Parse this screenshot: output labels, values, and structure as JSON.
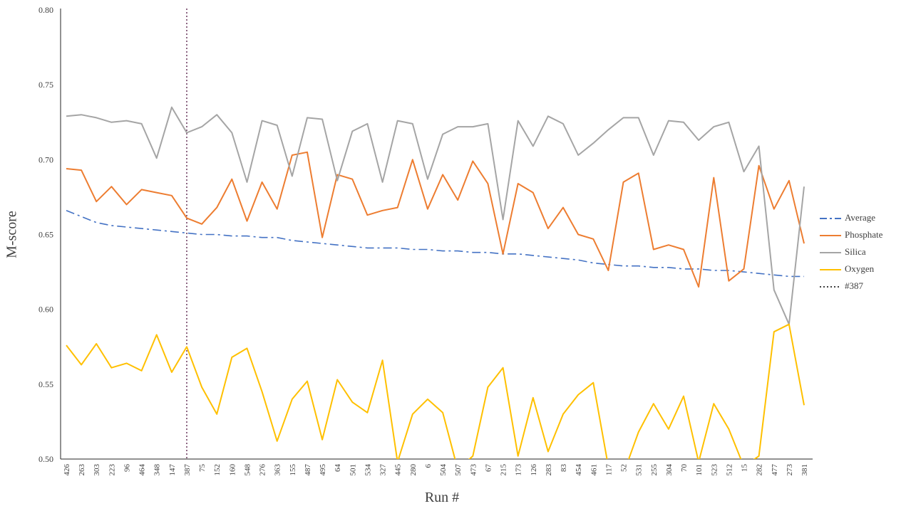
{
  "chart_data": {
    "type": "line",
    "title": "",
    "xlabel": "Run #",
    "ylabel": "M-score",
    "ylim": [
      0.5,
      0.8
    ],
    "ytick_step": 0.05,
    "grid": false,
    "legend_position": "right",
    "categories": [
      "426",
      "263",
      "303",
      "223",
      "96",
      "464",
      "348",
      "147",
      "387",
      "75",
      "152",
      "160",
      "548",
      "276",
      "363",
      "155",
      "487",
      "495",
      "64",
      "501",
      "534",
      "327",
      "445",
      "280",
      "6",
      "504",
      "507",
      "473",
      "67",
      "215",
      "173",
      "126",
      "283",
      "83",
      "454",
      "461",
      "117",
      "52",
      "531",
      "255",
      "304",
      "70",
      "101",
      "523",
      "512",
      "15",
      "282",
      "477",
      "273",
      "381"
    ],
    "series": [
      {
        "name": "Average",
        "color": "#4472C4",
        "style": "dash-dot",
        "width": 1.6,
        "values": [
          0.666,
          0.662,
          0.658,
          0.656,
          0.655,
          0.654,
          0.653,
          0.652,
          0.651,
          0.65,
          0.65,
          0.649,
          0.649,
          0.648,
          0.648,
          0.646,
          0.645,
          0.644,
          0.643,
          0.642,
          0.641,
          0.641,
          0.641,
          0.64,
          0.64,
          0.639,
          0.639,
          0.638,
          0.638,
          0.637,
          0.637,
          0.636,
          0.635,
          0.634,
          0.633,
          0.631,
          0.63,
          0.629,
          0.629,
          0.628,
          0.628,
          0.627,
          0.627,
          0.626,
          0.626,
          0.625,
          0.624,
          0.623,
          0.622,
          0.622
        ]
      },
      {
        "name": "Phosphate",
        "color": "#ED7D31",
        "style": "solid",
        "width": 2,
        "values": [
          0.694,
          0.693,
          0.672,
          0.682,
          0.67,
          0.68,
          0.678,
          0.676,
          0.661,
          0.657,
          0.668,
          0.687,
          0.659,
          0.685,
          0.667,
          0.703,
          0.705,
          0.648,
          0.69,
          0.687,
          0.663,
          0.666,
          0.668,
          0.7,
          0.667,
          0.69,
          0.673,
          0.699,
          0.684,
          0.637,
          0.684,
          0.678,
          0.654,
          0.668,
          0.65,
          0.647,
          0.626,
          0.685,
          0.691,
          0.64,
          0.643,
          0.64,
          0.615,
          0.688,
          0.619,
          0.627,
          0.696,
          0.667,
          0.686,
          0.644
        ]
      },
      {
        "name": "Silica",
        "color": "#A5A5A5",
        "style": "solid",
        "width": 2,
        "values": [
          0.729,
          0.73,
          0.728,
          0.725,
          0.726,
          0.724,
          0.701,
          0.735,
          0.718,
          0.722,
          0.73,
          0.718,
          0.685,
          0.726,
          0.723,
          0.689,
          0.728,
          0.727,
          0.686,
          0.719,
          0.724,
          0.685,
          0.726,
          0.724,
          0.687,
          0.717,
          0.722,
          0.722,
          0.724,
          0.66,
          0.726,
          0.709,
          0.729,
          0.724,
          0.703,
          0.711,
          0.72,
          0.728,
          0.728,
          0.703,
          0.726,
          0.725,
          0.713,
          0.722,
          0.725,
          0.692,
          0.709,
          0.613,
          0.59,
          0.682
        ]
      },
      {
        "name": "Oxygen",
        "color": "#FFC000",
        "style": "solid",
        "width": 2,
        "values": [
          0.576,
          0.563,
          0.577,
          0.561,
          0.564,
          0.559,
          0.583,
          0.558,
          0.575,
          0.548,
          0.53,
          0.568,
          0.574,
          0.545,
          0.512,
          0.54,
          0.552,
          0.513,
          0.553,
          0.538,
          0.531,
          0.566,
          0.498,
          0.53,
          0.54,
          0.531,
          0.493,
          0.502,
          0.548,
          0.561,
          0.502,
          0.541,
          0.505,
          0.53,
          0.543,
          0.551,
          0.495,
          0.49,
          0.518,
          0.537,
          0.52,
          0.542,
          0.498,
          0.537,
          0.52,
          0.495,
          0.502,
          0.585,
          0.59,
          0.536
        ]
      }
    ],
    "vline": {
      "label": "#387",
      "category": "387",
      "color": "#5E2750",
      "style": "dotted"
    },
    "ytick_labels": [
      "0.50",
      "0.55",
      "0.60",
      "0.65",
      "0.70",
      "0.75",
      "0.80"
    ]
  }
}
